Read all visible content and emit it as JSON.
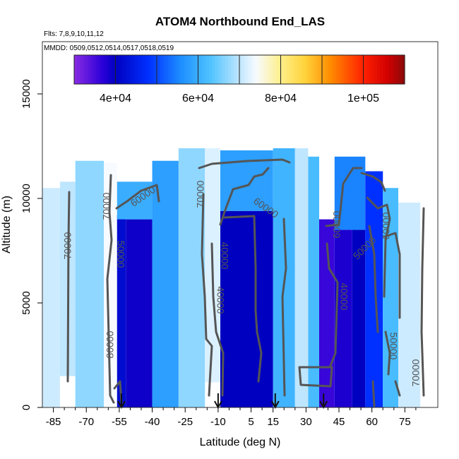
{
  "chart_data": {
    "type": "heatmap",
    "title": "ATOM4 Northbound End_LAS",
    "subtitle_flights": "Flts: 7,8,9,10,11,12",
    "subtitle_dates": "MMDD: 0509,0512,0514,0517,0518,0519",
    "xlabel": "Latitude (deg N)",
    "ylabel": "Altitude (m)",
    "xlim": [
      -90,
      90
    ],
    "ylim": [
      0,
      17500
    ],
    "x_ticks": [
      -85,
      -70,
      -55,
      -40,
      -25,
      -10,
      5,
      15,
      30,
      45,
      60,
      75
    ],
    "x_minor_ticks": [
      -80,
      -75,
      -65,
      -60,
      -50,
      -45,
      -35,
      -30,
      -20,
      -15,
      -5,
      0,
      10,
      20,
      25,
      35,
      40,
      50,
      55,
      65,
      70,
      80
    ],
    "y_ticks": [
      0,
      5000,
      10000,
      15000
    ],
    "colorbar": {
      "min": 30000,
      "max": 110000,
      "ticks": [
        40000,
        60000,
        80000,
        100000
      ],
      "tick_labels": [
        "4e+04",
        "6e+04",
        "8e+04",
        "1e+05"
      ],
      "boundaries": [
        40000,
        50000,
        60000,
        70000,
        80000,
        90000,
        100000
      ],
      "stops": [
        {
          "v": 30000,
          "color": "#8a2be2"
        },
        {
          "v": 37000,
          "color": "#2a00d8"
        },
        {
          "v": 40000,
          "color": "#0000c0"
        },
        {
          "v": 48000,
          "color": "#0030ff"
        },
        {
          "v": 56000,
          "color": "#1e90ff"
        },
        {
          "v": 63000,
          "color": "#4fc3ff"
        },
        {
          "v": 70000,
          "color": "#bfe6ff"
        },
        {
          "v": 74000,
          "color": "#f7fbff"
        },
        {
          "v": 80000,
          "color": "#ffef8a"
        },
        {
          "v": 86000,
          "color": "#ffd23a"
        },
        {
          "v": 92000,
          "color": "#ff8c00"
        },
        {
          "v": 100000,
          "color": "#ff2000"
        },
        {
          "v": 106000,
          "color": "#d00000"
        },
        {
          "v": 110000,
          "color": "#8b0a0a"
        }
      ]
    },
    "data_blocks": [
      {
        "lat": [
          -90,
          -82
        ],
        "alt": [
          0,
          10500
        ],
        "value": 71000
      },
      {
        "lat": [
          -82,
          -75
        ],
        "alt": [
          1500,
          10800
        ],
        "value": 70000
      },
      {
        "lat": [
          -75,
          -62
        ],
        "alt": [
          0,
          11800
        ],
        "value": 67000
      },
      {
        "lat": [
          -62,
          -56
        ],
        "alt": [
          0,
          11700
        ],
        "value": 74000
      },
      {
        "lat": [
          -56,
          -52
        ],
        "alt": [
          0,
          9200
        ],
        "value": 42000
      },
      {
        "lat": [
          -52,
          -40
        ],
        "alt": [
          0,
          9000
        ],
        "value": 39000
      },
      {
        "lat": [
          -56,
          -40
        ],
        "alt": [
          9000,
          10800
        ],
        "value": 60000
      },
      {
        "lat": [
          -40,
          -28
        ],
        "alt": [
          0,
          11800
        ],
        "value": 58000
      },
      {
        "lat": [
          -28,
          -16
        ],
        "alt": [
          0,
          12400
        ],
        "value": 67000
      },
      {
        "lat": [
          -16,
          -9
        ],
        "alt": [
          1200,
          12400
        ],
        "value": 72000
      },
      {
        "lat": [
          -9,
          15
        ],
        "alt": [
          0,
          9400
        ],
        "value": 40000
      },
      {
        "lat": [
          -9,
          15
        ],
        "alt": [
          9400,
          12300
        ],
        "value": 58000
      },
      {
        "lat": [
          15,
          25
        ],
        "alt": [
          0,
          12400
        ],
        "value": 61000
      },
      {
        "lat": [
          25,
          31
        ],
        "alt": [
          0,
          12400
        ],
        "value": 70000
      },
      {
        "lat": [
          31,
          36
        ],
        "alt": [
          0,
          12000
        ],
        "value": 62000
      },
      {
        "lat": [
          36,
          43
        ],
        "alt": [
          0,
          9000
        ],
        "value": 36000
      },
      {
        "lat": [
          43,
          51
        ],
        "alt": [
          0,
          8500
        ],
        "value": 38000
      },
      {
        "lat": [
          51,
          57
        ],
        "alt": [
          0,
          8500
        ],
        "value": 40000
      },
      {
        "lat": [
          43,
          57
        ],
        "alt": [
          8500,
          12000
        ],
        "value": 55000
      },
      {
        "lat": [
          57,
          65
        ],
        "alt": [
          0,
          11300
        ],
        "value": 48000
      },
      {
        "lat": [
          65,
          72
        ],
        "alt": [
          0,
          10500
        ],
        "value": 62000
      },
      {
        "lat": [
          72,
          82
        ],
        "alt": [
          0,
          9800
        ],
        "value": 71000
      }
    ],
    "contour_labels": [
      "70000",
      "70000",
      "60000",
      "50000",
      "80000",
      "70000",
      "40000",
      "60000",
      "40000",
      "60000",
      "50000",
      "40000",
      "60000",
      "50000",
      "70000"
    ],
    "profile_arrows_lat": [
      -54,
      -10,
      16,
      38
    ]
  }
}
